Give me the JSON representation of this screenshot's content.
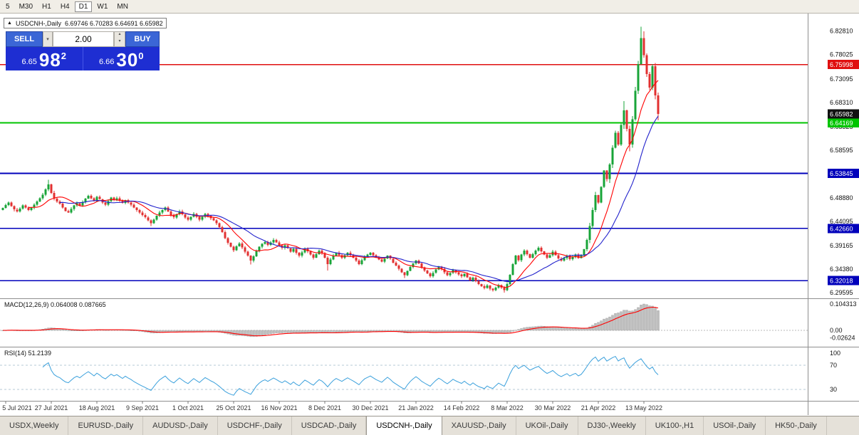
{
  "toolbar": {
    "timeframes": [
      {
        "label": "5"
      },
      {
        "label": "M30"
      },
      {
        "label": "H1"
      },
      {
        "label": "H4"
      },
      {
        "label": "D1",
        "active": true
      },
      {
        "label": "W1"
      },
      {
        "label": "MN"
      }
    ]
  },
  "chart": {
    "marker": "▲",
    "title": "USDCNH-,Daily",
    "ohlc": "6.69746 6.70283 6.64691 6.65982"
  },
  "trade_panel": {
    "sell_label": "SELL",
    "buy_label": "BUY",
    "volume": "2.00",
    "dropdown_icon": "▾",
    "spin_up_icon": "▴",
    "spin_down_icon": "▾",
    "sell_price_small": "6.65",
    "sell_price_big": "98",
    "sell_price_sup": "2",
    "buy_price_small": "6.66",
    "buy_price_big": "30",
    "buy_price_sup": "0"
  },
  "indicators": {
    "macd_label": "MACD(12,26,9) 0.064008 0.087665",
    "rsi_label": "RSI(14) 51.2139"
  },
  "chart_data": {
    "type": "candlestick",
    "symbol": "USDCNH",
    "timeframe": "Daily",
    "y_range": {
      "top": 6.848,
      "bottom": 6.29
    },
    "price_axis_ticks": [
      "6.82810",
      "6.78025",
      "6.73095",
      "6.68310",
      "6.63325",
      "6.58595",
      "6.48880",
      "6.44095",
      "6.39165",
      "6.34380",
      "6.29595"
    ],
    "current_price": {
      "label": "6.65982",
      "badge_bg": "#111111"
    },
    "levels": [
      {
        "label": "6.75998",
        "color": "#e01010",
        "width": 1.4
      },
      {
        "label": "6.64169",
        "color": "#00c400",
        "width": 2
      },
      {
        "label": "6.53845",
        "color": "#0000bb",
        "width": 1.7
      },
      {
        "label": "6.42660",
        "color": "#0000bb",
        "width": 1.7
      },
      {
        "label": "6.32018",
        "color": "#0000bb",
        "width": 1.7
      }
    ],
    "date_ticks": [
      {
        "label": "5 Jul 2021",
        "day": 1
      },
      {
        "label": "27 Jul 2021",
        "day": 17
      },
      {
        "label": "18 Aug 2021",
        "day": 33
      },
      {
        "label": "9 Sep 2021",
        "day": 49
      },
      {
        "label": "1 Oct 2021",
        "day": 65
      },
      {
        "label": "25 Oct 2021",
        "day": 81
      },
      {
        "label": "16 Nov 2021",
        "day": 97
      },
      {
        "label": "8 Dec 2021",
        "day": 113
      },
      {
        "label": "30 Dec 2021",
        "day": 129
      },
      {
        "label": "21 Jan 2022",
        "day": 145
      },
      {
        "label": "14 Feb 2022",
        "day": 161
      },
      {
        "label": "8 Mar 2022",
        "day": 177
      },
      {
        "label": "30 Mar 2022",
        "day": 193
      },
      {
        "label": "21 Apr 2022",
        "day": 209
      },
      {
        "label": "13 May 2022",
        "day": 225
      }
    ],
    "candles": {
      "first_open": 6.464,
      "closes": [
        6.468,
        6.474,
        6.479,
        6.472,
        6.465,
        6.461,
        6.467,
        6.473,
        6.469,
        6.464,
        6.469,
        6.475,
        6.481,
        6.488,
        6.495,
        6.506,
        6.516,
        6.499,
        6.487,
        6.481,
        6.477,
        6.469,
        6.462,
        6.459,
        6.466,
        6.473,
        6.478,
        6.473,
        6.48,
        6.487,
        6.493,
        6.488,
        6.482,
        6.491,
        6.486,
        6.479,
        6.475,
        6.482,
        6.489,
        6.484,
        6.488,
        6.483,
        6.478,
        6.484,
        6.479,
        6.475,
        6.469,
        6.464,
        6.459,
        6.454,
        6.449,
        6.443,
        6.437,
        6.444,
        6.452,
        6.459,
        6.464,
        6.469,
        6.461,
        6.454,
        6.449,
        6.455,
        6.461,
        6.455,
        6.449,
        6.444,
        6.45,
        6.456,
        6.45,
        6.444,
        6.45,
        6.456,
        6.452,
        6.447,
        6.443,
        6.437,
        6.429,
        6.419,
        6.407,
        6.397,
        6.389,
        6.382,
        6.39,
        6.396,
        6.388,
        6.379,
        6.371,
        6.361,
        6.37,
        6.381,
        6.389,
        6.395,
        6.399,
        6.393,
        6.398,
        6.403,
        6.398,
        6.392,
        6.387,
        6.392,
        6.386,
        6.379,
        6.385,
        6.377,
        6.371,
        6.378,
        6.385,
        6.38,
        6.373,
        6.367,
        6.374,
        6.381,
        6.376,
        6.367,
        6.354,
        6.363,
        6.371,
        6.377,
        6.372,
        6.367,
        6.372,
        6.377,
        6.372,
        6.367,
        6.361,
        6.354,
        6.362,
        6.369,
        6.373,
        6.377,
        6.372,
        6.367,
        6.363,
        6.359,
        6.365,
        6.371,
        6.365,
        6.357,
        6.351,
        6.344,
        6.337,
        6.331,
        6.34,
        6.348,
        6.355,
        6.361,
        6.355,
        6.347,
        6.341,
        6.335,
        6.329,
        6.336,
        6.343,
        6.349,
        6.344,
        6.337,
        6.331,
        6.336,
        6.342,
        6.337,
        6.333,
        6.329,
        6.334,
        6.327,
        6.321,
        6.326,
        6.319,
        6.313,
        6.309,
        6.305,
        6.31,
        6.304,
        6.301,
        6.306,
        6.311,
        6.306,
        6.301,
        6.313,
        6.332,
        6.354,
        6.371,
        6.362,
        6.373,
        6.381,
        6.374,
        6.367,
        6.374,
        6.381,
        6.387,
        6.38,
        6.373,
        6.367,
        6.372,
        6.379,
        6.372,
        6.365,
        6.361,
        6.366,
        6.371,
        6.364,
        6.369,
        6.373,
        6.366,
        6.371,
        6.384,
        6.403,
        6.431,
        6.464,
        6.494,
        6.479,
        6.511,
        6.544,
        6.527,
        6.557,
        6.591,
        6.621,
        6.597,
        6.637,
        6.667,
        6.629,
        6.597,
        6.649,
        6.707,
        6.761,
        6.814,
        6.779,
        6.741,
        6.713,
        6.757,
        6.697,
        6.6598
      ],
      "wick_overrides": {
        "16": {
          "h": 6.5255
        },
        "52": {
          "l": 6.431
        },
        "87": {
          "l": 6.353
        },
        "114": {
          "l": 6.341
        },
        "141": {
          "l": 6.3255
        },
        "176": {
          "l": 6.2961
        },
        "218": {
          "h": 6.686
        },
        "220": {
          "l": 6.5835
        },
        "224": {
          "h": 6.837
        },
        "225": {
          "h": 6.828
        },
        "230": {
          "h": 6.7028,
          "l": 6.6469
        }
      }
    },
    "moving_averages": [
      {
        "period": 10,
        "color": "#ff0000"
      },
      {
        "period": 21,
        "color": "#2323cc"
      }
    ],
    "macd": {
      "params": [
        12,
        26,
        9
      ],
      "value": "0.064008",
      "signal_value": "0.087665",
      "axis_ticks": [
        "0.104313",
        "0.00",
        "-0.02624"
      ],
      "histogram_color": "#bdbdbd",
      "signal_color": "#ff0000"
    },
    "rsi": {
      "period": 14,
      "value": "51.2139",
      "axis_ticks": [
        "100",
        "70",
        "30"
      ],
      "levels": [
        70,
        30
      ],
      "color": "#3aa0dc"
    },
    "colors": {
      "bull": "#18a438",
      "bear": "#e23030"
    }
  },
  "tabs": [
    {
      "label": "USDX,Weekly"
    },
    {
      "label": "EURUSD-,Daily"
    },
    {
      "label": "AUDUSD-,Daily"
    },
    {
      "label": "USDCHF-,Daily"
    },
    {
      "label": "USDCAD-,Daily"
    },
    {
      "label": "USDCNH-,Daily",
      "active": true
    },
    {
      "label": "XAUUSD-,Daily"
    },
    {
      "label": "UKOil-,Daily"
    },
    {
      "label": "DJ30-,Weekly"
    },
    {
      "label": "UK100-,H1"
    },
    {
      "label": "USOil-,Daily"
    },
    {
      "label": "HK50-,Daily"
    }
  ]
}
